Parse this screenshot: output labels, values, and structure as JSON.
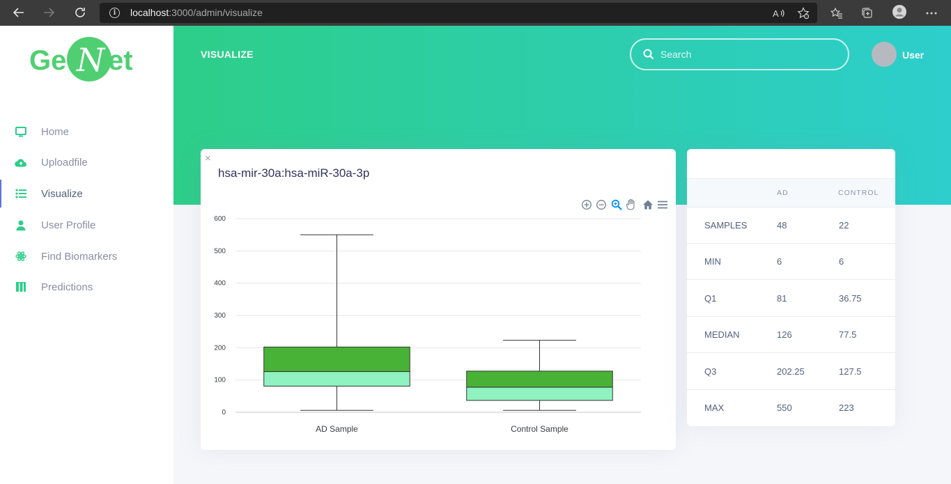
{
  "browser": {
    "url_host": "localhost",
    "url_path": ":3000/admin/visualize"
  },
  "sidebar": {
    "logo": {
      "left": "Ge",
      "mid": "N",
      "right": "et"
    },
    "items": [
      {
        "label": "Home",
        "icon": "monitor-icon",
        "active": false
      },
      {
        "label": "Uploadfile",
        "icon": "cloud-upload-icon",
        "active": false
      },
      {
        "label": "Visualize",
        "icon": "list-icon",
        "active": true
      },
      {
        "label": "User Profile",
        "icon": "user-icon",
        "active": false
      },
      {
        "label": "Find Biomarkers",
        "icon": "atom-icon",
        "active": false
      },
      {
        "label": "Predictions",
        "icon": "test-tubes-icon",
        "active": false
      }
    ]
  },
  "header": {
    "title": "VISUALIZE",
    "search_placeholder": "Search",
    "user_name": "User"
  },
  "chart_card": {
    "close_label": "×",
    "title": "hsa-mir-30a:hsa-miR-30a-3p"
  },
  "chart_data": {
    "type": "boxplot",
    "categories": [
      "AD Sample",
      "Control Sample"
    ],
    "boxes": [
      {
        "name": "AD Sample",
        "min": 6,
        "q1": 81,
        "median": 126,
        "q3": 202.25,
        "max": 550
      },
      {
        "name": "Control Sample",
        "min": 6,
        "q1": 36.75,
        "median": 77.5,
        "q3": 127.5,
        "max": 223
      }
    ],
    "yticks": [
      "0",
      "100",
      "200",
      "300",
      "400",
      "500",
      "600"
    ],
    "ylim": [
      0,
      600
    ],
    "grid": true,
    "colors": {
      "upper_box": "#47b236",
      "lower_box": "#90f2c0"
    }
  },
  "stats": {
    "headers": [
      "",
      "AD",
      "CONTROL"
    ],
    "rows": [
      {
        "label": "SAMPLES",
        "ad": "48",
        "control": "22"
      },
      {
        "label": "MIN",
        "ad": "6",
        "control": "6"
      },
      {
        "label": "Q1",
        "ad": "81",
        "control": "36.75"
      },
      {
        "label": "MEDIAN",
        "ad": "126",
        "control": "77.5"
      },
      {
        "label": "Q3",
        "ad": "202.25",
        "control": "127.5"
      },
      {
        "label": "MAX",
        "ad": "550",
        "control": "223"
      }
    ]
  }
}
